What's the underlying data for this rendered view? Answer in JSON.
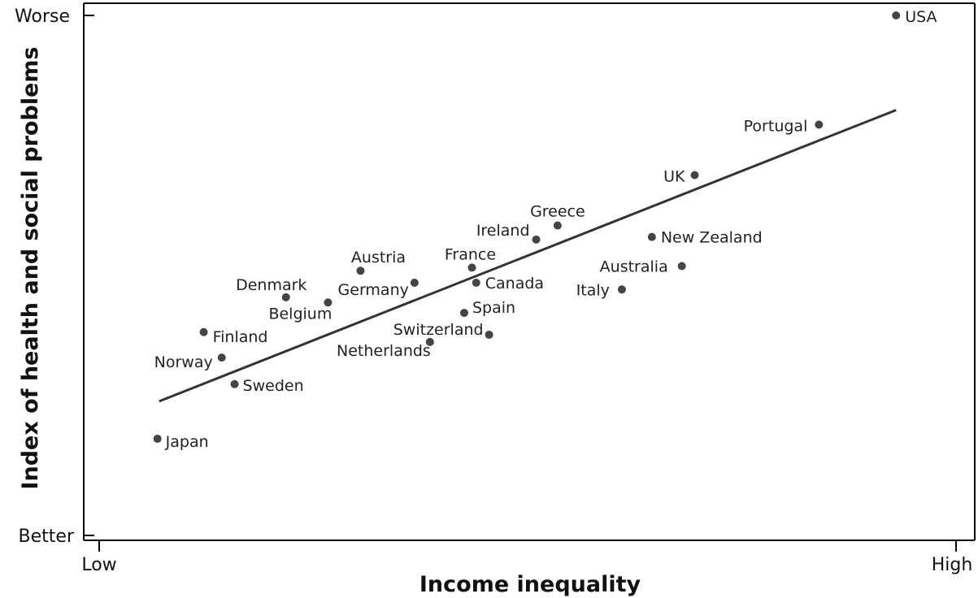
{
  "chart_data": {
    "type": "scatter",
    "xlabel": "Income inequality",
    "ylabel": "Index of health and social problems",
    "x_tick_labels": {
      "low": "Low",
      "high": "High"
    },
    "y_tick_labels": {
      "top": "Worse",
      "bottom": "Better"
    },
    "xlim": [
      0,
      100
    ],
    "ylim": [
      0,
      100
    ],
    "grid": false,
    "legend": "none",
    "colors": {
      "point": "#444444",
      "line": "#333333",
      "axis": "#000000",
      "text": "#111111"
    },
    "trendline": {
      "x": [
        7,
        93
      ],
      "y": [
        25.8,
        81.8
      ]
    },
    "points": [
      {
        "name": "USA",
        "x": 93.0,
        "y": 100.0
      },
      {
        "name": "Portugal",
        "x": 84.0,
        "y": 79.0
      },
      {
        "name": "UK",
        "x": 69.5,
        "y": 69.3
      },
      {
        "name": "Greece",
        "x": 53.5,
        "y": 59.6
      },
      {
        "name": "Ireland",
        "x": 51.0,
        "y": 56.9
      },
      {
        "name": "New Zealand",
        "x": 64.5,
        "y": 57.4
      },
      {
        "name": "Australia",
        "x": 68.0,
        "y": 51.8
      },
      {
        "name": "France",
        "x": 43.5,
        "y": 51.5
      },
      {
        "name": "Canada",
        "x": 44.0,
        "y": 48.6
      },
      {
        "name": "Italy",
        "x": 61.0,
        "y": 47.3
      },
      {
        "name": "Austria",
        "x": 30.5,
        "y": 50.9
      },
      {
        "name": "Germany",
        "x": 36.8,
        "y": 48.6
      },
      {
        "name": "Denmark",
        "x": 21.8,
        "y": 45.8
      },
      {
        "name": "Belgium",
        "x": 26.7,
        "y": 44.8
      },
      {
        "name": "Spain",
        "x": 42.6,
        "y": 42.8
      },
      {
        "name": "Switzerland",
        "x": 45.5,
        "y": 38.6
      },
      {
        "name": "Netherlands",
        "x": 38.6,
        "y": 37.2
      },
      {
        "name": "Finland",
        "x": 12.2,
        "y": 39.1
      },
      {
        "name": "Norway",
        "x": 14.3,
        "y": 34.2
      },
      {
        "name": "Sweden",
        "x": 15.8,
        "y": 29.1
      },
      {
        "name": "Japan",
        "x": 6.8,
        "y": 18.6
      }
    ]
  }
}
